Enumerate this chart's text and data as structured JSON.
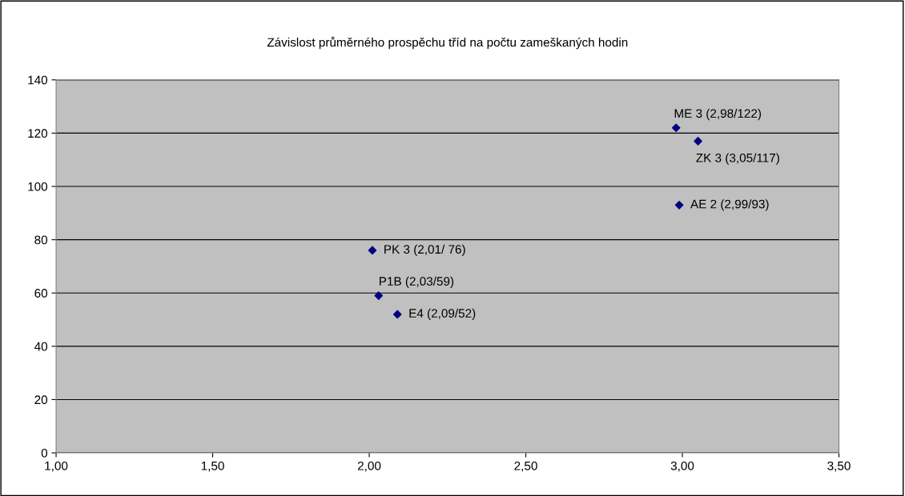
{
  "chart_data": {
    "type": "scatter",
    "title": "Závislost průměrného prospěchu tříd na počtu zameškaných hodin",
    "x": [
      2.98,
      3.05,
      2.99,
      2.01,
      2.03,
      2.09
    ],
    "series": [
      {
        "color": "#000080",
        "values": [
          122,
          117,
          93,
          76,
          59,
          52
        ]
      }
    ],
    "marker": "diamond",
    "grid": "y",
    "xlim": [
      1,
      3.5
    ],
    "xticks": [
      {
        "value": 1,
        "label": "1,00"
      },
      {
        "value": 1.5,
        "label": "1,50"
      },
      {
        "value": 2,
        "label": "2,00"
      },
      {
        "value": 2.5,
        "label": "2,50"
      },
      {
        "value": 3,
        "label": "3,00"
      },
      {
        "value": 3.5,
        "label": "3,50"
      }
    ],
    "ylim": [
      0,
      140
    ],
    "yticks": [
      0,
      20,
      40,
      60,
      80,
      100,
      120,
      140
    ],
    "annotations": [
      {
        "text": "ME 3 (2,98/122)",
        "x": 2.98,
        "y": 122
      },
      {
        "text": "ZK 3 (3,05/117)",
        "x": 3.05,
        "y": 117
      },
      {
        "text": "AE 2 (2,99/93)",
        "x": 2.99,
        "y": 93
      },
      {
        "text": "PK 3 (2,01/ 76)",
        "x": 2.01,
        "y": 76
      },
      {
        "text": "P1B (2,03/59)",
        "x": 2.03,
        "y": 59
      },
      {
        "text": "E4 (2,09/52)",
        "x": 2.09,
        "y": 52
      }
    ]
  }
}
